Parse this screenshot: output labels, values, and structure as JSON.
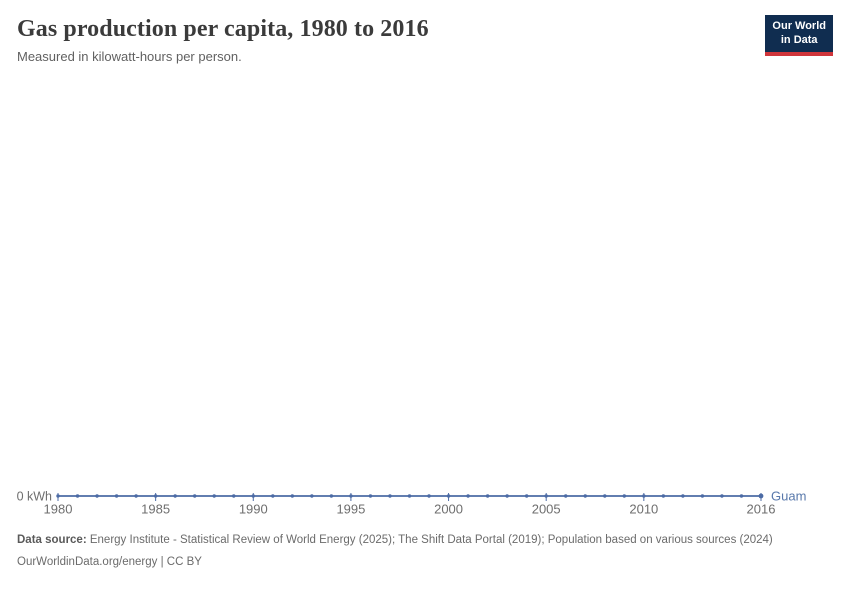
{
  "header": {
    "title": "Gas production per capita, 1980 to 2016",
    "subtitle": "Measured in kilowatt-hours per person."
  },
  "logo": {
    "line1": "Our World",
    "line2": "in Data",
    "bg_color": "#102d50",
    "accent_color": "#d0353b"
  },
  "chart_data": {
    "type": "line",
    "title": "Gas production per capita, 1980 to 2016",
    "subtitle": "Measured in kilowatt-hours per person.",
    "unit": "kilowatt-hours per person",
    "x": [
      1980,
      1981,
      1982,
      1983,
      1984,
      1985,
      1986,
      1987,
      1988,
      1989,
      1990,
      1991,
      1992,
      1993,
      1994,
      1995,
      1996,
      1997,
      1998,
      1999,
      2000,
      2001,
      2002,
      2003,
      2004,
      2005,
      2006,
      2007,
      2008,
      2009,
      2010,
      2011,
      2012,
      2013,
      2014,
      2015,
      2016
    ],
    "series": [
      {
        "name": "Guam",
        "color": "#4c6ba5",
        "values": [
          0,
          0,
          0,
          0,
          0,
          0,
          0,
          0,
          0,
          0,
          0,
          0,
          0,
          0,
          0,
          0,
          0,
          0,
          0,
          0,
          0,
          0,
          0,
          0,
          0,
          0,
          0,
          0,
          0,
          0,
          0,
          0,
          0,
          0,
          0,
          0,
          0
        ]
      }
    ],
    "x_ticks": [
      1980,
      1985,
      1990,
      1995,
      2000,
      2005,
      2010,
      2016
    ],
    "xlim": [
      1980,
      2016
    ],
    "ylim": [
      0,
      0
    ],
    "y_axis_zero_label": "0 kWh",
    "grid": false,
    "legend_position": "entity label at right end of line",
    "marker": "dot at every year, larger dot at final year",
    "tick_label_color": "#6e6e6e"
  },
  "footer": {
    "source_label": "Data source:",
    "source_text": " Energy Institute - Statistical Review of World Energy (2025); The Shift Data Portal (2019); Population based on various sources (2024)",
    "license": "OurWorldinData.org/energy | CC BY"
  }
}
